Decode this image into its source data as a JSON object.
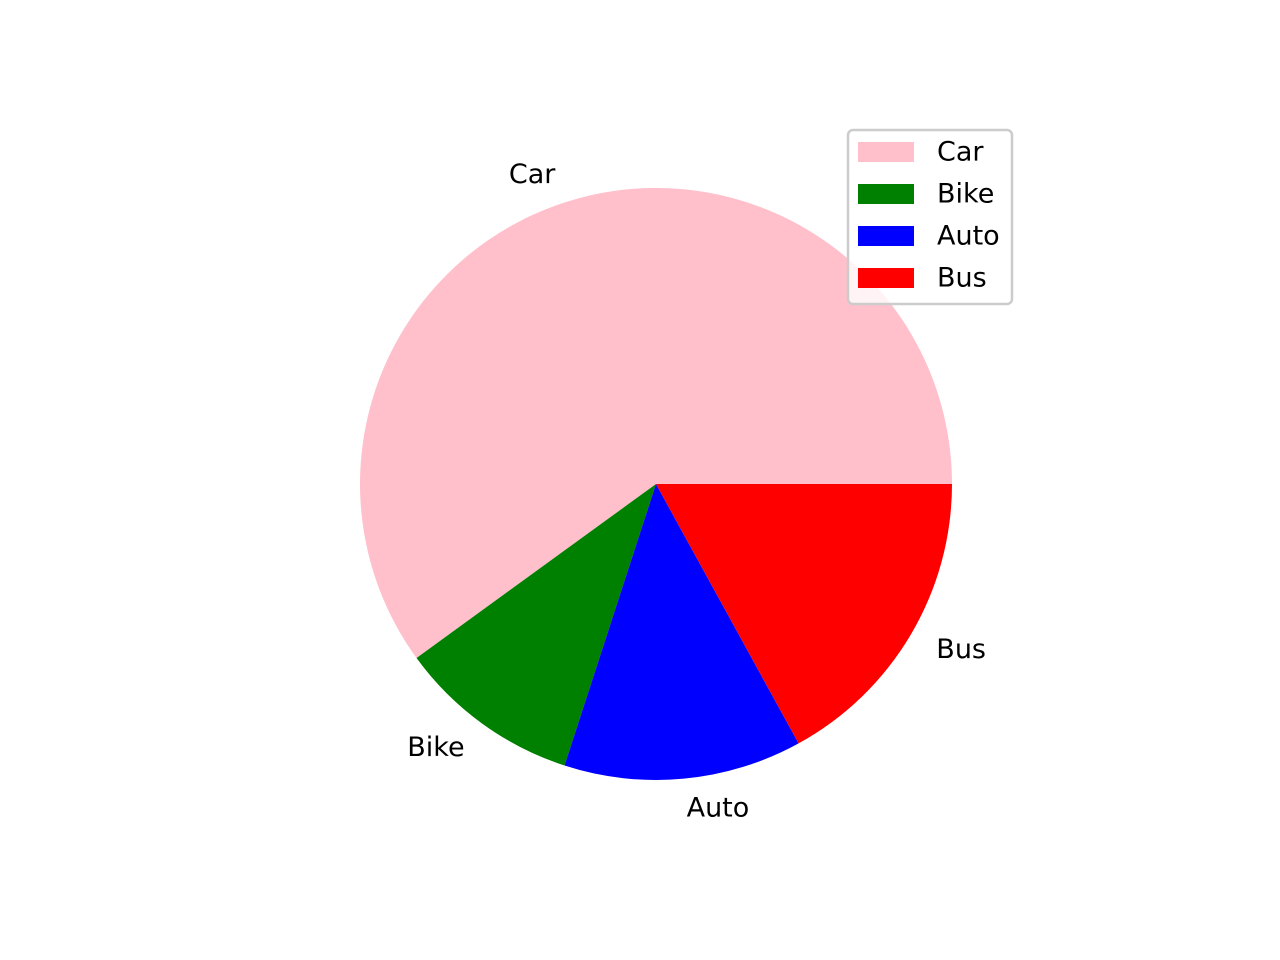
{
  "chart_data": {
    "type": "pie",
    "title": "",
    "labels": [
      "Car",
      "Bike",
      "Auto",
      "Bus"
    ],
    "values": [
      60,
      10,
      13,
      17
    ],
    "colors": [
      "#ffc0cb",
      "#008000",
      "#0000ff",
      "#ff0000"
    ],
    "start_angle_deg": 0,
    "direction": "counterclockwise",
    "legend": {
      "placement": "upper-right",
      "entries": [
        "Car",
        "Bike",
        "Auto",
        "Bus"
      ]
    }
  }
}
